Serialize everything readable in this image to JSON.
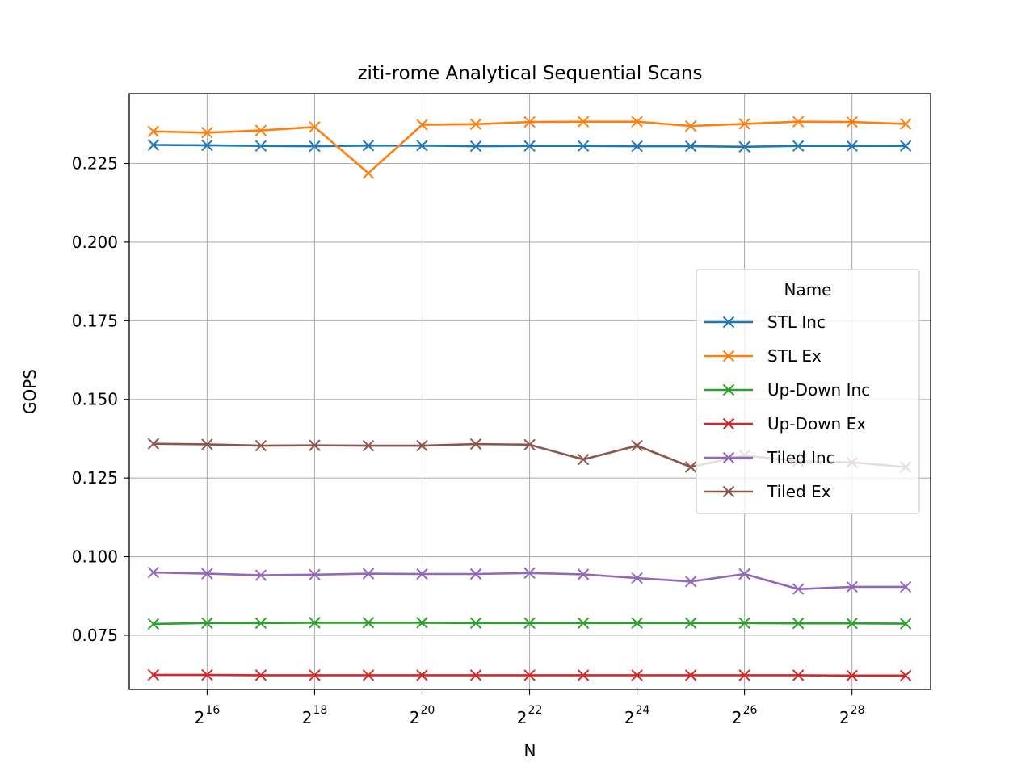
{
  "chart_data": {
    "type": "line",
    "title": "ziti-rome Analytical Sequential Scans",
    "xlabel": "N",
    "ylabel": "GOPS",
    "x_scale": "log2",
    "x": [
      32768,
      65536,
      131072,
      262144,
      524288,
      1048576,
      2097152,
      4194304,
      8388608,
      16777216,
      33554432,
      67108864,
      134217728,
      268435456,
      536870912
    ],
    "xlim": [
      24000,
      740000000
    ],
    "ylim": [
      0.0578,
      0.2472
    ],
    "x_ticks": [
      {
        "base": "2",
        "exp": "16",
        "value": 65536
      },
      {
        "base": "2",
        "exp": "18",
        "value": 262144
      },
      {
        "base": "2",
        "exp": "20",
        "value": 1048576
      },
      {
        "base": "2",
        "exp": "22",
        "value": 4194304
      },
      {
        "base": "2",
        "exp": "24",
        "value": 16777216
      },
      {
        "base": "2",
        "exp": "26",
        "value": 67108864
      },
      {
        "base": "2",
        "exp": "28",
        "value": 268435456
      }
    ],
    "y_ticks": [
      {
        "label": "0.075",
        "value": 0.075
      },
      {
        "label": "0.100",
        "value": 0.1
      },
      {
        "label": "0.125",
        "value": 0.125
      },
      {
        "label": "0.150",
        "value": 0.15
      },
      {
        "label": "0.175",
        "value": 0.175
      },
      {
        "label": "0.200",
        "value": 0.2
      },
      {
        "label": "0.225",
        "value": 0.225
      }
    ],
    "grid": true,
    "legend": {
      "title": "Name",
      "position": "right"
    },
    "series": [
      {
        "name": "STL Inc",
        "color": "#1f77b4",
        "marker": "x",
        "values": [
          0.2309,
          0.2308,
          0.2306,
          0.2305,
          0.2307,
          0.2307,
          0.2305,
          0.2306,
          0.2306,
          0.2305,
          0.2305,
          0.2303,
          0.2306,
          0.2306,
          0.2306
        ]
      },
      {
        "name": "STL Ex",
        "color": "#ff7f0e",
        "marker": "x",
        "values": [
          0.2352,
          0.2348,
          0.2355,
          0.2366,
          0.2219,
          0.2373,
          0.2375,
          0.2382,
          0.2383,
          0.2383,
          0.2369,
          0.2376,
          0.2383,
          0.2382,
          0.2376
        ]
      },
      {
        "name": "Up-Down Inc",
        "color": "#2ca02c",
        "marker": "x",
        "values": [
          0.0786,
          0.0789,
          0.0789,
          0.079,
          0.079,
          0.079,
          0.0789,
          0.0789,
          0.0789,
          0.0789,
          0.0789,
          0.0789,
          0.0788,
          0.0788,
          0.0787
        ]
      },
      {
        "name": "Up-Down Ex",
        "color": "#d62728",
        "marker": "x",
        "values": [
          0.0624,
          0.0624,
          0.0623,
          0.0623,
          0.0623,
          0.0623,
          0.0623,
          0.0623,
          0.0623,
          0.0623,
          0.0623,
          0.0623,
          0.0623,
          0.0622,
          0.0622
        ]
      },
      {
        "name": "Tiled Inc",
        "color": "#9467bd",
        "marker": "x",
        "values": [
          0.095,
          0.0946,
          0.0941,
          0.0943,
          0.0946,
          0.0945,
          0.0945,
          0.0948,
          0.0944,
          0.0932,
          0.0921,
          0.0945,
          0.0897,
          0.0904,
          0.0904
        ]
      },
      {
        "name": "Tiled Ex",
        "color": "#8c564b",
        "marker": "x",
        "values": [
          0.1359,
          0.1357,
          0.1353,
          0.1354,
          0.1353,
          0.1353,
          0.1358,
          0.1356,
          0.1309,
          0.1353,
          0.1285,
          0.1322,
          0.1303,
          0.13,
          0.1285
        ]
      }
    ]
  }
}
